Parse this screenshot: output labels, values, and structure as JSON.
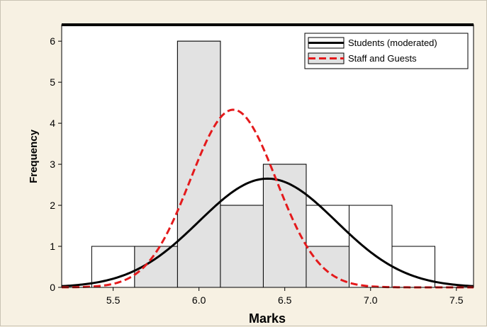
{
  "chart_data": {
    "type": "bar",
    "xlabel": "Marks",
    "ylabel": "Frequency",
    "xlim": [
      5.2,
      7.6
    ],
    "ylim": [
      0,
      6.4
    ],
    "xticks": [
      "5.5",
      "6.0",
      "6.5",
      "7.0",
      "7.5"
    ],
    "yticks": [
      "0",
      "1",
      "2",
      "3",
      "4",
      "5",
      "6"
    ],
    "bin_width": 0.25,
    "histograms": [
      {
        "group": "Students (moderated)",
        "fill": "#ffffff",
        "bins": [
          {
            "x": 5.5,
            "count": 1
          },
          {
            "x": 6.0,
            "count": 6
          },
          {
            "x": 6.25,
            "count": 2
          },
          {
            "x": 6.5,
            "count": 3
          },
          {
            "x": 6.75,
            "count": 2
          },
          {
            "x": 7.0,
            "count": 2
          },
          {
            "x": 7.25,
            "count": 1
          }
        ]
      },
      {
        "group": "Staff and Guests",
        "fill": "#e2e2e2",
        "bins": [
          {
            "x": 5.75,
            "count": 1
          },
          {
            "x": 6.0,
            "count": 6
          },
          {
            "x": 6.25,
            "count": 2
          },
          {
            "x": 6.5,
            "count": 3
          },
          {
            "x": 6.75,
            "count": 1
          }
        ]
      }
    ],
    "series": [
      {
        "name": "Students (moderated)",
        "kind": "normal-curve",
        "color": "#000000",
        "dash": "solid",
        "mean": 6.4,
        "sd": 0.4,
        "peak": 2.65
      },
      {
        "name": "Staff and Guests",
        "kind": "normal-curve",
        "color": "#e41a1c",
        "dash": "dashed",
        "mean": 6.2,
        "sd": 0.25,
        "peak": 4.33
      }
    ],
    "legend": {
      "position": "top-right"
    },
    "grid": false
  }
}
